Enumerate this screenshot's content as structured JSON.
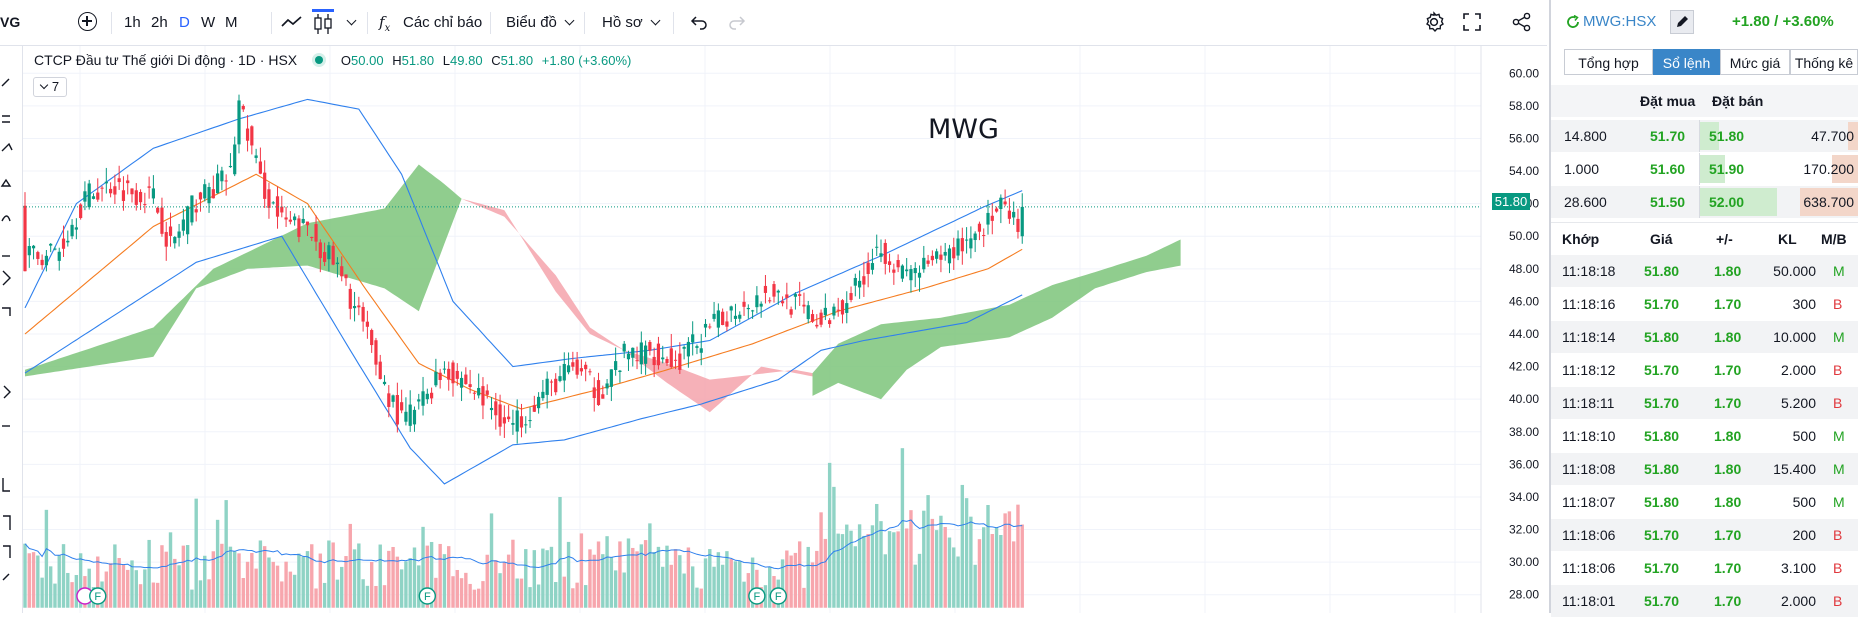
{
  "toolbar": {
    "symbol_partial": "VG",
    "intervals": [
      "1h",
      "2h",
      "D",
      "W",
      "M"
    ],
    "active_interval": "D",
    "indicators_label": "Các chỉ báo",
    "chart_type_label": "Biểu đồ",
    "profile_label": "Hồ sơ"
  },
  "legend": {
    "title": "CTCP Đầu tư Thế giới Di động · 1D · HSX",
    "o_label": "O",
    "o": "50.00",
    "h_label": "H",
    "h": "51.80",
    "l_label": "L",
    "l": "49.80",
    "c_label": "C",
    "c": "51.80",
    "change": "+1.80 (+3.60%)",
    "indicator_count": "7"
  },
  "watermark": "MWG",
  "last_price_badge": "51.80",
  "colors": {
    "up": "#089981",
    "down": "#f23645",
    "ma": "#f57c20",
    "bb": "#2f80ed",
    "cloud_green": "#7cc47a",
    "cloud_red": "#f5a3ab",
    "accent": "#2962ff"
  },
  "chart_data": {
    "type": "candlestick",
    "ylim": [
      27,
      61
    ],
    "y_ticks": [
      "60.00",
      "58.00",
      "56.00",
      "54.00",
      "52.00",
      "50.00",
      "48.00",
      "46.00",
      "44.00",
      "42.00",
      "40.00",
      "38.00",
      "36.00",
      "34.00",
      "32.00",
      "30.00",
      "28.00"
    ],
    "last": 51.8,
    "close_anchors": [
      [
        0,
        48.6
      ],
      [
        8,
        49.2
      ],
      [
        14,
        52.4
      ],
      [
        20,
        53.2
      ],
      [
        30,
        52.4
      ],
      [
        34,
        49.4
      ],
      [
        40,
        52.2
      ],
      [
        48,
        53.8
      ],
      [
        50,
        58.2
      ],
      [
        55,
        53.4
      ],
      [
        60,
        50.8
      ],
      [
        66,
        50.4
      ],
      [
        72,
        48.4
      ],
      [
        78,
        45.2
      ],
      [
        84,
        40.8
      ],
      [
        88,
        38.6
      ],
      [
        92,
        39.6
      ],
      [
        98,
        42.0
      ],
      [
        104,
        40.8
      ],
      [
        110,
        39.2
      ],
      [
        114,
        38.4
      ],
      [
        122,
        40.6
      ],
      [
        128,
        42.0
      ],
      [
        134,
        40.4
      ],
      [
        140,
        42.6
      ],
      [
        146,
        43.0
      ],
      [
        152,
        42.2
      ],
      [
        158,
        43.8
      ],
      [
        166,
        45.6
      ],
      [
        174,
        46.6
      ],
      [
        180,
        45.8
      ],
      [
        186,
        44.6
      ],
      [
        194,
        46.8
      ],
      [
        200,
        49.6
      ],
      [
        204,
        47.6
      ],
      [
        212,
        48.2
      ],
      [
        220,
        49.8
      ],
      [
        228,
        51.6
      ],
      [
        232,
        50.6
      ],
      [
        233,
        51.8
      ]
    ],
    "ma20": [
      [
        0,
        44.0
      ],
      [
        30,
        50.6
      ],
      [
        45,
        52.6
      ],
      [
        54,
        53.8
      ],
      [
        66,
        52.0
      ],
      [
        80,
        46.6
      ],
      [
        92,
        42.2
      ],
      [
        104,
        40.6
      ],
      [
        116,
        39.4
      ],
      [
        134,
        40.6
      ],
      [
        150,
        41.8
      ],
      [
        170,
        43.4
      ],
      [
        190,
        45.4
      ],
      [
        210,
        46.8
      ],
      [
        225,
        48.0
      ],
      [
        233,
        49.2
      ]
    ],
    "bb_upper": [
      [
        0,
        45.6
      ],
      [
        12,
        52.0
      ],
      [
        30,
        55.4
      ],
      [
        50,
        57.2
      ],
      [
        66,
        58.4
      ],
      [
        78,
        57.8
      ],
      [
        88,
        53.8
      ],
      [
        100,
        46.0
      ],
      [
        114,
        42.0
      ],
      [
        128,
        42.5
      ],
      [
        146,
        43.0
      ],
      [
        160,
        43.6
      ],
      [
        180,
        46.5
      ],
      [
        200,
        48.8
      ],
      [
        224,
        51.8
      ],
      [
        233,
        52.8
      ]
    ],
    "bb_lower": [
      [
        0,
        41.6
      ],
      [
        20,
        45.0
      ],
      [
        40,
        48.4
      ],
      [
        60,
        50.0
      ],
      [
        76,
        43.0
      ],
      [
        90,
        37.0
      ],
      [
        98,
        34.8
      ],
      [
        114,
        37.2
      ],
      [
        126,
        37.5
      ],
      [
        144,
        38.8
      ],
      [
        158,
        39.7
      ],
      [
        176,
        41.2
      ],
      [
        186,
        43.0
      ],
      [
        196,
        43.6
      ],
      [
        220,
        44.7
      ],
      [
        233,
        46.4
      ]
    ],
    "cloud_green_a": [
      [
        0,
        41.8
      ],
      [
        30,
        44.4
      ],
      [
        44,
        48.0
      ],
      [
        66,
        50.8
      ],
      [
        84,
        51.7
      ],
      [
        92,
        54.4
      ],
      [
        98,
        53.2
      ],
      [
        102,
        52.3
      ]
    ],
    "cloud_green_b": [
      [
        0,
        41.4
      ],
      [
        30,
        42.6
      ],
      [
        40,
        46.8
      ],
      [
        52,
        48.0
      ],
      [
        66,
        48.2
      ],
      [
        84,
        46.8
      ],
      [
        92,
        45.4
      ],
      [
        102,
        52.3
      ]
    ],
    "cloud_red_a": [
      [
        102,
        52.3
      ],
      [
        112,
        51.6
      ],
      [
        124,
        46.6
      ],
      [
        132,
        44.0
      ],
      [
        140,
        43.0
      ],
      [
        150,
        42.2
      ],
      [
        160,
        41.2
      ],
      [
        180,
        41.8
      ],
      [
        184,
        41.6
      ]
    ],
    "cloud_red_b": [
      [
        102,
        52.3
      ],
      [
        112,
        51.2
      ],
      [
        124,
        47.6
      ],
      [
        132,
        44.4
      ],
      [
        140,
        43.0
      ],
      [
        150,
        41.0
      ],
      [
        160,
        39.2
      ],
      [
        172,
        42.0
      ],
      [
        184,
        41.4
      ]
    ],
    "cloud_green2_a": [
      [
        184,
        41.6
      ],
      [
        190,
        43.4
      ],
      [
        200,
        44.6
      ],
      [
        214,
        45.0
      ],
      [
        230,
        45.8
      ],
      [
        240,
        47.0
      ],
      [
        250,
        47.8
      ],
      [
        262,
        48.8
      ],
      [
        270,
        49.8
      ]
    ],
    "cloud_green2_b": [
      [
        184,
        40.2
      ],
      [
        190,
        41.0
      ],
      [
        200,
        40.0
      ],
      [
        206,
        41.8
      ],
      [
        214,
        43.2
      ],
      [
        230,
        43.8
      ],
      [
        240,
        45.0
      ],
      [
        250,
        46.8
      ],
      [
        262,
        47.8
      ],
      [
        270,
        48.2
      ]
    ],
    "volume_markers": [
      "F",
      "F",
      "F",
      "F"
    ]
  },
  "panel": {
    "symbol": "MWG:HSX",
    "change": "+1.80 / +3.60%",
    "tabs": [
      "Tổng hợp",
      "Sổ lệnh",
      "Mức giá",
      "Thống kê"
    ],
    "selected_tab": "Sổ lệnh",
    "book_headers": {
      "bid": "Đặt mua",
      "ask": "Đặt bán"
    },
    "book": [
      {
        "bid_vol": "14.800",
        "bid": "51.70",
        "ask": "51.80",
        "ask_vol": "47.700"
      },
      {
        "bid_vol": "1.000",
        "bid": "51.60",
        "ask": "51.90",
        "ask_vol": "170.200"
      },
      {
        "bid_vol": "28.600",
        "bid": "51.50",
        "ask": "52.00",
        "ask_vol": "638.700"
      }
    ],
    "trade_headers": {
      "time": "Khớp",
      "price": "Giá",
      "change": "+/-",
      "vol": "KL",
      "side": "M/B"
    },
    "trades": [
      {
        "time": "11:18:18",
        "price": "51.80",
        "change": "1.80",
        "vol": "50.000",
        "side": "M"
      },
      {
        "time": "11:18:16",
        "price": "51.70",
        "change": "1.70",
        "vol": "300",
        "side": "B"
      },
      {
        "time": "11:18:14",
        "price": "51.80",
        "change": "1.80",
        "vol": "10.000",
        "side": "M"
      },
      {
        "time": "11:18:12",
        "price": "51.70",
        "change": "1.70",
        "vol": "2.000",
        "side": "B"
      },
      {
        "time": "11:18:11",
        "price": "51.70",
        "change": "1.70",
        "vol": "5.200",
        "side": "B"
      },
      {
        "time": "11:18:10",
        "price": "51.80",
        "change": "1.80",
        "vol": "500",
        "side": "M"
      },
      {
        "time": "11:18:08",
        "price": "51.80",
        "change": "1.80",
        "vol": "15.400",
        "side": "M"
      },
      {
        "time": "11:18:07",
        "price": "51.80",
        "change": "1.80",
        "vol": "500",
        "side": "M"
      },
      {
        "time": "11:18:06",
        "price": "51.70",
        "change": "1.70",
        "vol": "200",
        "side": "B"
      },
      {
        "time": "11:18:06",
        "price": "51.70",
        "change": "1.70",
        "vol": "3.100",
        "side": "B"
      },
      {
        "time": "11:18:01",
        "price": "51.70",
        "change": "1.70",
        "vol": "2.000",
        "side": "B"
      }
    ]
  }
}
